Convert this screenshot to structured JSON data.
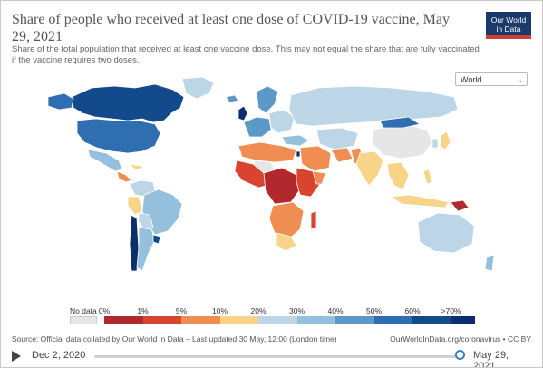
{
  "header": {
    "title": "Share of people who received at least one dose of COVID-19 vaccine, May 29, 2021",
    "subtitle": "Share of the total population that received at least one vaccine dose. This may not equal the share that are fully vaccinated if the vaccine requires two doses.",
    "logo_line1": "Our World",
    "logo_line2": "in Data"
  },
  "region_select": {
    "value": "World"
  },
  "colors": {
    "no_data": "#e6e6e6",
    "bins": [
      "#b2282f",
      "#d9442f",
      "#f08d53",
      "#f7d488",
      "#bcd6e8",
      "#94c0de",
      "#5c99c9",
      "#2f6eb0",
      "#134a8c",
      "#0a2f6b"
    ],
    "ocean": "#ffffff",
    "border": "#ffffff"
  },
  "legend": {
    "no_data_label": "No data",
    "ticks": [
      "0%",
      "1%",
      "5%",
      "10%",
      "20%",
      "30%",
      "40%",
      "50%",
      "60%",
      ">70%"
    ]
  },
  "footer": {
    "source": "Source: Official data collated by Our World in Data – Last updated 30 May, 12:00 (London time)",
    "license": "OurWorldInData.org/coronavirus • CC BY"
  },
  "timeline": {
    "start_date": "Dec 2, 2020",
    "end_date": "May 29, 2021",
    "position": 1.0
  }
}
